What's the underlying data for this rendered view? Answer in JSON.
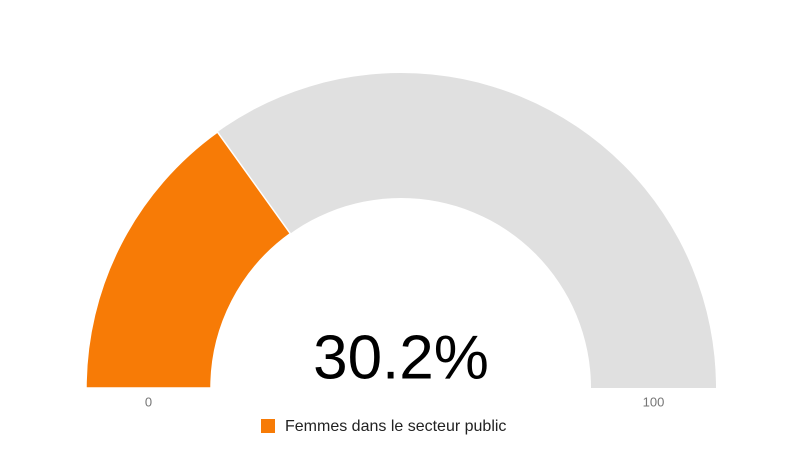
{
  "chart_data": {
    "type": "gauge",
    "series": [
      {
        "name": "Femmes dans le secteur public",
        "color": "#f77b06",
        "values": [
          30.2
        ],
        "value_labels": [
          "30.2%"
        ]
      }
    ],
    "ylim": [
      0,
      100
    ],
    "yticks": [
      0,
      100
    ],
    "track_color": "#e0e0e0"
  }
}
